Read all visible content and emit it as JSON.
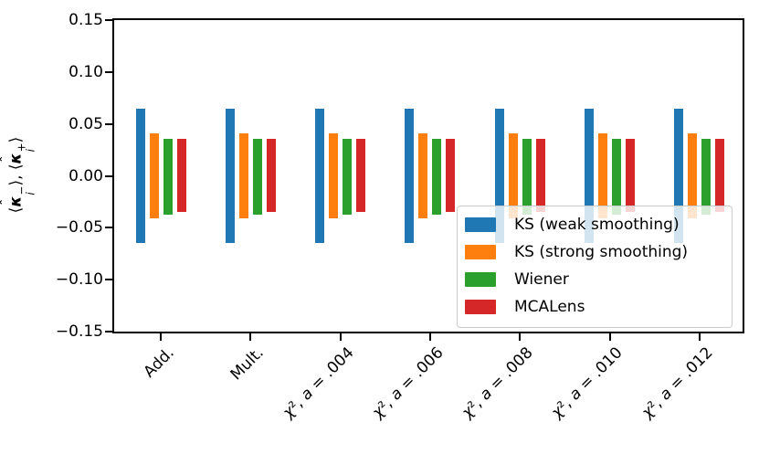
{
  "figure": {
    "background": "#ffffff",
    "y_axis_label_parts": {
      "open1": "⟨",
      "kappa1": "κ",
      "hat1": "ˆ",
      "sub1": "i",
      "sup1": "−",
      "mid": "⟩, ⟨",
      "kappa2": "κ",
      "hat2": "ˆ",
      "sub2": "i",
      "sup2": "+",
      "close": "⟩"
    }
  },
  "chart_data": {
    "type": "bar",
    "title": "",
    "xlabel": "",
    "ylabel": "⟨κ̂ᵢ⁻⟩, ⟨κ̂ᵢ⁺⟩",
    "ylim": [
      -0.15,
      0.15
    ],
    "yticks": [
      0.15,
      0.1,
      0.05,
      0.0,
      -0.05,
      -0.1,
      -0.15
    ],
    "ytick_labels": [
      "0.15",
      "0.10",
      "0.05",
      "0.00",
      "−0.05",
      "−0.10",
      "−0.15"
    ],
    "categories": [
      "Add.",
      "Mult.",
      "χ², a = .004",
      "χ², a = .006",
      "χ², a = .008",
      "χ², a = .010",
      "χ², a = .012"
    ],
    "categories_math": [
      false,
      false,
      true,
      true,
      true,
      true,
      true
    ],
    "grid": false,
    "legend_position": "lower right",
    "series": [
      {
        "name": "KS (weak smoothing)",
        "color": "#1f77b4",
        "upper": [
          0.065,
          0.065,
          0.065,
          0.065,
          0.065,
          0.065,
          0.065
        ],
        "lower": [
          -0.065,
          -0.065,
          -0.065,
          -0.065,
          -0.065,
          -0.065,
          -0.065
        ]
      },
      {
        "name": "KS (strong smoothing)",
        "color": "#ff7f0e",
        "upper": [
          0.041,
          0.041,
          0.041,
          0.041,
          0.041,
          0.041,
          0.041
        ],
        "lower": [
          -0.041,
          -0.041,
          -0.041,
          -0.041,
          -0.041,
          -0.041,
          -0.041
        ]
      },
      {
        "name": "Wiener",
        "color": "#2ca02c",
        "upper": [
          0.036,
          0.036,
          0.036,
          0.036,
          0.036,
          0.036,
          0.036
        ],
        "lower": [
          -0.037,
          -0.037,
          -0.037,
          -0.037,
          -0.037,
          -0.037,
          -0.037
        ]
      },
      {
        "name": "MCALens",
        "color": "#d62728",
        "upper": [
          0.036,
          0.036,
          0.036,
          0.036,
          0.036,
          0.036,
          0.036
        ],
        "lower": [
          -0.035,
          -0.035,
          -0.035,
          -0.035,
          -0.035,
          -0.035,
          -0.035
        ]
      }
    ]
  }
}
